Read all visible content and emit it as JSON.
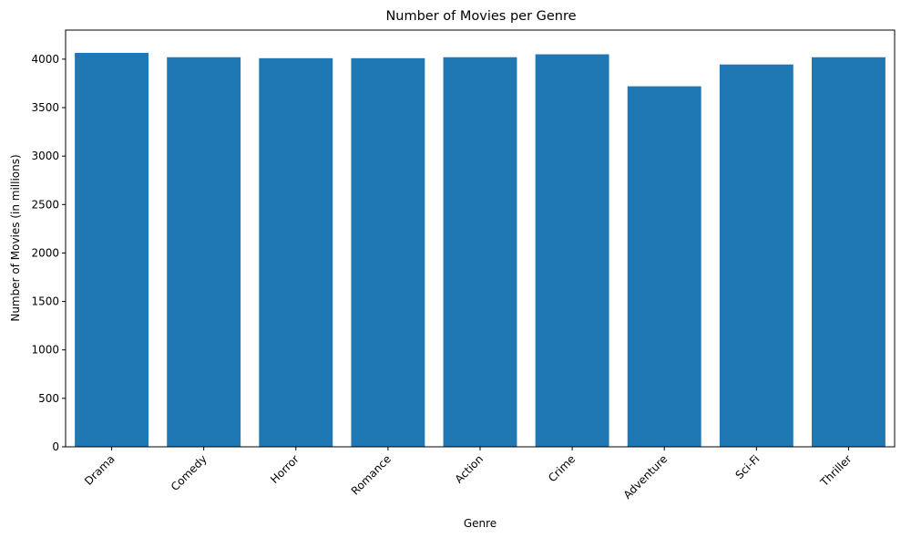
{
  "chart_data": {
    "type": "bar",
    "title": "Number of Movies per Genre",
    "xlabel": "Genre",
    "ylabel": "Number of Movies (in millions)",
    "categories": [
      "Drama",
      "Comedy",
      "Horror",
      "Romance",
      "Action",
      "Crime",
      "Adventure",
      "Sci-Fi",
      "Thriller"
    ],
    "values": [
      4065,
      4020,
      4010,
      4010,
      4020,
      4050,
      3720,
      3945,
      4020
    ],
    "ylim": [
      0,
      4300
    ],
    "yticks": [
      0,
      500,
      1000,
      1500,
      2000,
      2500,
      3000,
      3500,
      4000
    ],
    "bar_color": "#1f77b4",
    "grid": false,
    "legend": "none"
  }
}
